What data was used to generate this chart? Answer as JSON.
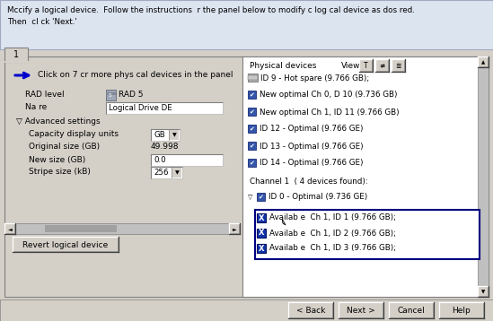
{
  "title_text1": "Mccify a logical device.  Follow the instructions  r the panel below to modify c log cal device as dos red.",
  "title_text2": "Then  cl ck 'Next.'",
  "tab_label": "1",
  "arrow_text": "Click on 7 cr more phys cal devices in the panel",
  "raid_label": "RAD level",
  "raid_value": "RAD 5",
  "name_label": "Na re",
  "name_value": "Logical Drive DE",
  "advanced_label": "▽ Advanced settings",
  "cap_label": "Capacity display units",
  "cap_value": "GB",
  "orig_label": "Original size (GB)",
  "orig_value": "49.998",
  "new_label": "New size (GB)",
  "new_value": "0.0",
  "stripe_label": "Stripe size (kB)",
  "stripe_value": "256",
  "revert_button": "Revert logical device",
  "phys_label": "Physical devices",
  "view_label": "View",
  "devices": [
    {
      "type": "hotspare",
      "text": "ID 9 - Hot spare (9.766 GB);"
    },
    {
      "type": "check",
      "text": "New optimal Ch 0, D 10 (9.736 GB)"
    },
    {
      "type": "check",
      "text": "New optimal Ch 1, ID 11 (9.766 GB)"
    },
    {
      "type": "check",
      "text": "ID 12 - Optimal (9.766 GE)"
    },
    {
      "type": "check",
      "text": "ID 13 - Optimal (9.766 GE)"
    },
    {
      "type": "check",
      "text": "ID 14 - Optimal (9.766 GE)"
    }
  ],
  "channel_label": "Channel 1  ( 4 devices found):",
  "ch_device_text": "ID 0 - Optimal (9.736 GE)",
  "sub_devices": [
    "Availab e  Ch 1, ID 1 (9.766 GB);",
    "Availab e  Ch 1, ID 2 (9.766 GB);",
    "Availab e  Ch 1, ID 3 (9.766 GB);"
  ],
  "bottom_buttons": [
    "< Back",
    "Next >",
    "Cancel",
    "Help"
  ],
  "bg": "#d4d0c8",
  "white": "#ffffff",
  "panel_bg": "#ffffff",
  "btn_face": "#d4d0c8",
  "scrollbar": "#c0c0c0",
  "blue_header": "#c8d4ec",
  "title_bg": "#dce4f0",
  "dark": "#808080",
  "navy": "#000080",
  "black": "#000000"
}
